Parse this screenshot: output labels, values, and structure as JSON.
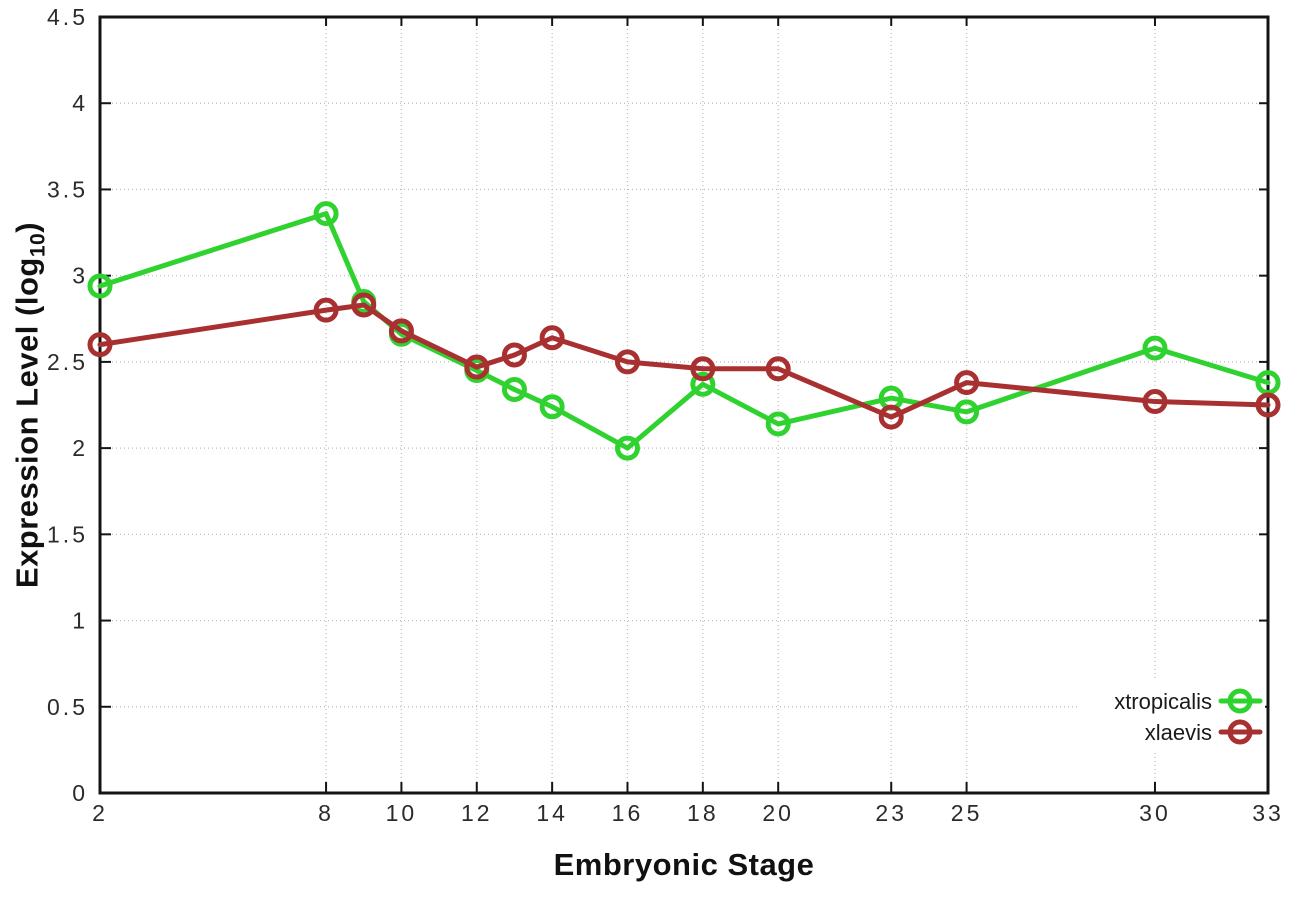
{
  "figure": {
    "xlabel": "Embryonic Stage",
    "ylabel_prefix": "Expression Level (log",
    "ylabel_sub": "10",
    "ylabel_suffix": ")"
  },
  "chart_data": {
    "type": "line",
    "title": "",
    "xlabel": "Embryonic Stage",
    "ylabel": "Expression Level (log10)",
    "xlim": [
      2,
      33
    ],
    "ylim": [
      0,
      4.5
    ],
    "grid": true,
    "legend_position": "bottom-right",
    "x_ticks": [
      2,
      8,
      10,
      12,
      14,
      16,
      18,
      20,
      23,
      25,
      30,
      33
    ],
    "x_tick_labels": [
      "2",
      "8",
      "10",
      "12",
      "14",
      "16",
      "18",
      "20",
      "23",
      "25",
      "30",
      "33"
    ],
    "y_ticks": [
      0,
      0.5,
      1,
      1.5,
      2,
      2.5,
      3,
      3.5,
      4,
      4.5
    ],
    "y_tick_labels": [
      "0",
      "0.5",
      "1",
      "1.5",
      "2",
      "2.5",
      "3",
      "3.5",
      "4",
      "4.5"
    ],
    "x": [
      2,
      8,
      9,
      10,
      12,
      13,
      14,
      16,
      18,
      20,
      23,
      25,
      30,
      33
    ],
    "series": [
      {
        "name": "xtropicalis",
        "color": "#30d230",
        "marker": "open-circle",
        "values": [
          2.94,
          3.36,
          2.85,
          2.66,
          2.45,
          2.34,
          2.24,
          2.0,
          2.37,
          2.14,
          2.29,
          2.21,
          2.58,
          2.38
        ]
      },
      {
        "name": "xlaevis",
        "color": "#a93030",
        "marker": "open-circle",
        "values": [
          2.6,
          2.8,
          2.83,
          2.68,
          2.47,
          2.54,
          2.64,
          2.5,
          2.46,
          2.46,
          2.18,
          2.38,
          2.27,
          2.25
        ]
      }
    ],
    "colors": {
      "background": "#ffffff",
      "axis": "#141414",
      "grid": "#bbbbbb",
      "tick_label": "#2b2b2b",
      "legend_text": "#1a1a1a"
    }
  }
}
